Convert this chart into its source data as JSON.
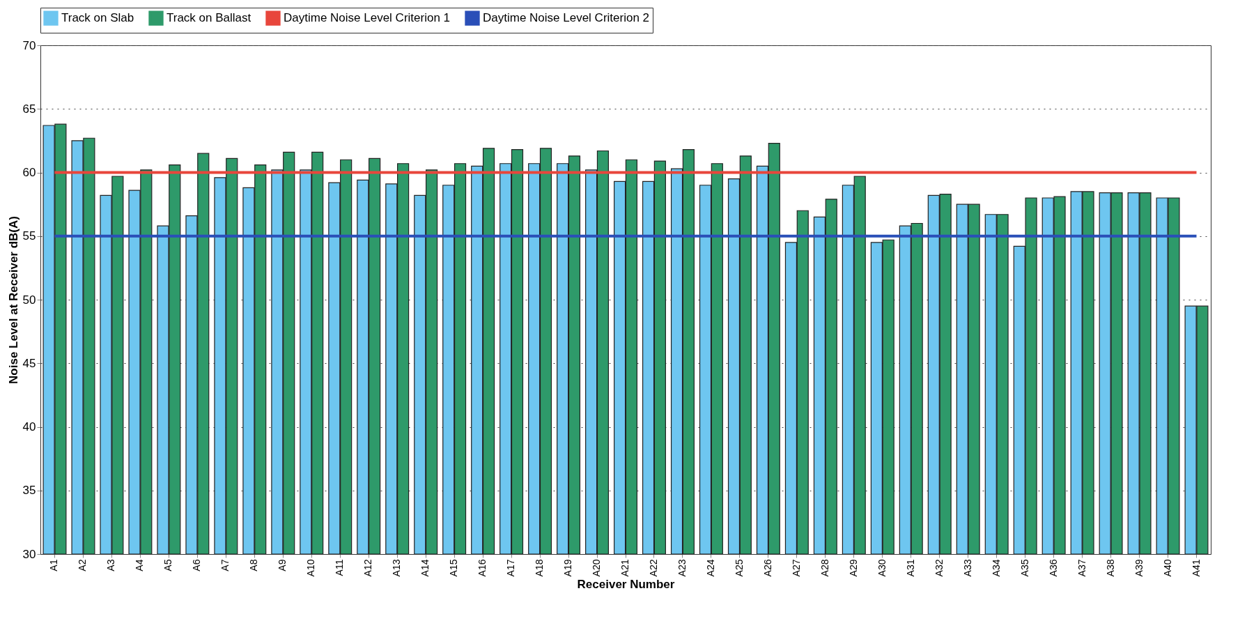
{
  "chart_data": {
    "type": "bar",
    "xlabel": "Receiver Number",
    "ylabel": "Noise Level at Receiver dB(A)",
    "categories": [
      "A1",
      "A2",
      "A3",
      "A4",
      "A5",
      "A6",
      "A7",
      "A8",
      "A9",
      "A10",
      "A11",
      "A12",
      "A13",
      "A14",
      "A15",
      "A16",
      "A17",
      "A18",
      "A19",
      "A20",
      "A21",
      "A22",
      "A23",
      "A24",
      "A25",
      "A26",
      "A27",
      "A28",
      "A29",
      "A30",
      "A31",
      "A32",
      "A33",
      "A34",
      "A35",
      "A36",
      "A37",
      "A38",
      "A39",
      "A40",
      "A41"
    ],
    "series": [
      {
        "name": "Track on Slab",
        "color": "#6ec6f0",
        "values": [
          63.7,
          62.5,
          58.2,
          58.6,
          55.8,
          56.6,
          59.6,
          58.8,
          60.2,
          60.2,
          59.2,
          59.4,
          59.1,
          58.2,
          59.0,
          60.5,
          60.7,
          60.7,
          60.7,
          60.2,
          59.3,
          59.3,
          60.3,
          59.0,
          59.5,
          60.5,
          54.5,
          56.5,
          59.0,
          54.5,
          55.8,
          58.2,
          57.5,
          56.7,
          54.2,
          58.0,
          58.5,
          58.4,
          58.4,
          58.0,
          49.5
        ]
      },
      {
        "name": "Track on Ballast",
        "color": "#2e9a6a",
        "values": [
          63.8,
          62.7,
          59.7,
          60.2,
          60.6,
          61.5,
          61.1,
          60.6,
          61.6,
          61.6,
          61.0,
          61.1,
          60.7,
          60.2,
          60.7,
          61.9,
          61.8,
          61.9,
          61.3,
          61.7,
          61.0,
          60.9,
          61.8,
          60.7,
          61.3,
          62.3,
          57.0,
          57.9,
          59.7,
          54.7,
          56.0,
          58.3,
          57.5,
          56.7,
          58.0,
          58.1,
          58.5,
          58.4,
          58.4,
          58.0,
          49.5
        ]
      },
      {
        "name": "Daytime Noise Level Criterion 1",
        "type": "line",
        "color": "#e8463c",
        "values": [
          60,
          60,
          60,
          60,
          60,
          60,
          60,
          60,
          60,
          60,
          60,
          60,
          60,
          60,
          60,
          60,
          60,
          60,
          60,
          60,
          60,
          60,
          60,
          60,
          60,
          60,
          60,
          60,
          60,
          60,
          60,
          60,
          60,
          60,
          60,
          60,
          60,
          60,
          60,
          60,
          60
        ]
      },
      {
        "name": "Daytime Noise Level Criterion 2",
        "type": "line",
        "color": "#2a4fb8",
        "values": [
          55,
          55,
          55,
          55,
          55,
          55,
          55,
          55,
          55,
          55,
          55,
          55,
          55,
          55,
          55,
          55,
          55,
          55,
          55,
          55,
          55,
          55,
          55,
          55,
          55,
          55,
          55,
          55,
          55,
          55,
          55,
          55,
          55,
          55,
          55,
          55,
          55,
          55,
          55,
          55,
          55
        ]
      }
    ],
    "ylim": [
      30,
      70
    ],
    "yticks": [
      30,
      35,
      40,
      45,
      50,
      55,
      60,
      65,
      70
    ],
    "grid": "y",
    "legend": "top",
    "marker": "none",
    "line_style": "solid"
  }
}
